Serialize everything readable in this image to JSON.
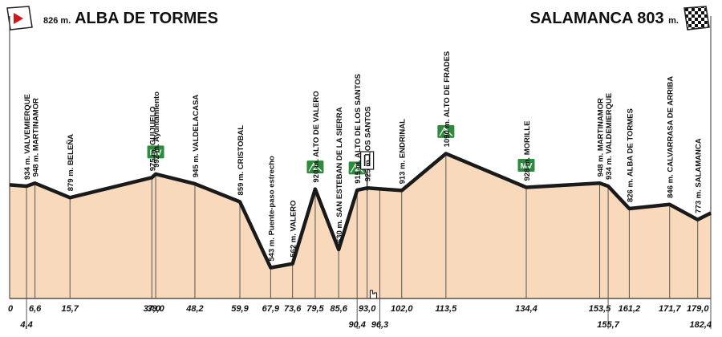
{
  "header": {
    "start": {
      "altitude": "826 m.",
      "name": "ALBA DE TORMES"
    },
    "finish": {
      "name": "SALAMANCA 803",
      "unit": "m."
    }
  },
  "colors": {
    "fill": "#f9d9bc",
    "profile": "#1a1a1a",
    "climb": "#2e8b3e",
    "ink": "#111111"
  },
  "waypoints": [
    {
      "label": "934 m. VALVEMIERQUE",
      "km": "4,4"
    },
    {
      "label": "948 m. MARTINAMOR",
      "km": "6,6"
    },
    {
      "label": "879 m. BELEÑA",
      "km": "15,7"
    },
    {
      "label": "975 m. GUIJUELO",
      "km": "37,0"
    },
    {
      "label": "992 m. Ayuntamiento",
      "km": "38,0"
    },
    {
      "label": "945 m. VALDELACASA",
      "km": "48,2"
    },
    {
      "label": "859 m. CRISTOBAL",
      "km": "59,9"
    },
    {
      "label": "543 m. Puente-paso estrecho",
      "km": "67,9"
    },
    {
      "label": "562 m. VALERO",
      "km": "73,6"
    },
    {
      "label": "920 m. ALTO DE VALERO",
      "km": "79,5"
    },
    {
      "label": "630 m. SAN ESTEBAN DE LA SIERRA",
      "km": "85,6"
    },
    {
      "label": "915 m. ALTO DE LOS SANTOS",
      "km": "90,4"
    },
    {
      "label": "925 m. LOS SANTOS",
      "km": "93,0"
    },
    {
      "label": "",
      "km": "96,3"
    },
    {
      "label": "913 m. ENDRINAL",
      "km": "102,0"
    },
    {
      "label": "1090 m. ALTO DE FRADES",
      "km": "113,5"
    },
    {
      "label": "928 m. MORILLE",
      "km": "134,4"
    },
    {
      "label": "948 m. MARTINAMOR",
      "km": "153,5"
    },
    {
      "label": "934 m. VALDEMIERQUE",
      "km": "155,7"
    },
    {
      "label": "826 m. ALBA DE TORMES",
      "km": "161,2"
    },
    {
      "label": "846 m. CALVARRASA DE ARRIBA",
      "km": "171,7"
    },
    {
      "label": "773 m. SALAMANCA",
      "km": "179,0"
    },
    {
      "label": "",
      "km": "182,4"
    }
  ],
  "km_start": "0",
  "badges": [
    {
      "text": "MV",
      "km": 38.0
    },
    {
      "text": "2",
      "km": 79.5
    },
    {
      "text": "2",
      "km": 90.4
    },
    {
      "text": "3",
      "km": 113.5
    },
    {
      "text": "MV",
      "km": 134.4
    }
  ],
  "feed_zone_icon": "knife-fork-icon",
  "cursor_icon": "hand-cursor-icon"
}
